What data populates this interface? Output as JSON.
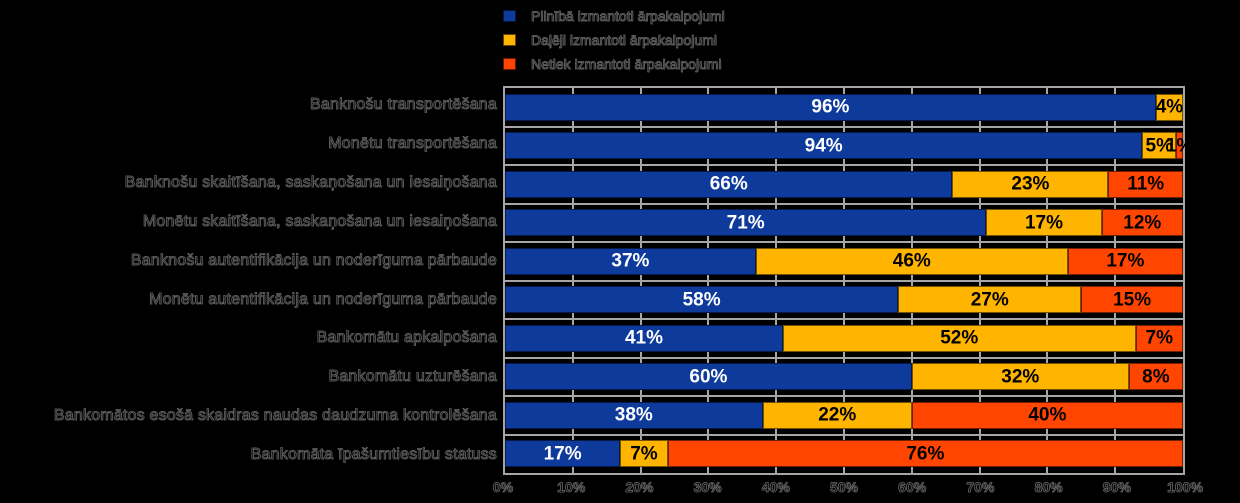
{
  "legend": {
    "items": [
      {
        "label": "Pilnībā izmantoti ārpakalpojumi",
        "color": "#0D3A9B"
      },
      {
        "label": "Daļēji izmantoti ārpakalpojumi",
        "color": "#FFB400"
      },
      {
        "label": "Netiek izmantoti ārpakalpojumi",
        "color": "#FF4500"
      }
    ]
  },
  "chart_data": {
    "type": "bar",
    "orientation": "horizontal",
    "stacked": true,
    "unit": "%",
    "title": "",
    "xlabel": "",
    "ylabel": "",
    "grid": true,
    "legend_position": "top",
    "xlim": [
      0,
      100
    ],
    "x_ticks": [
      "0%",
      "10%",
      "20%",
      "30%",
      "40%",
      "50%",
      "60%",
      "70%",
      "80%",
      "90%",
      "100%"
    ],
    "categories": [
      "Banknošu transportēšana",
      "Monētu transportēšana",
      "Banknošu skaitīšana, saskaņošana un iesaiņošana",
      "Monētu skaitīšana, saskaņošana un iesaiņošana",
      "Banknošu autentifikācija un noderīguma pārbaude",
      "Monētu autentifikācija un noderīguma pārbaude",
      "Bankomātu apkalpošana",
      "Bankomātu uzturēšana",
      "Bankomātos esošā skaidras naudas daudzuma kontrolēšana",
      "Bankomāta īpašumtiesību statuss"
    ],
    "series": [
      {
        "name": "Pilnībā izmantoti ārpakalpojumi",
        "color": "#0D3A9B",
        "label_color": "#FFFFFF",
        "values": [
          96,
          94,
          66,
          71,
          37,
          58,
          41,
          60,
          38,
          17
        ]
      },
      {
        "name": "Daļēji izmantoti ārpakalpojumi",
        "color": "#FFB400",
        "label_color": "#000000",
        "values": [
          4,
          5,
          23,
          17,
          46,
          27,
          52,
          32,
          22,
          7
        ]
      },
      {
        "name": "Netiek izmantoti ārpakalpojumi",
        "color": "#FF4500",
        "label_color": "#000000",
        "values": [
          0,
          1,
          11,
          12,
          17,
          15,
          7,
          8,
          40,
          76
        ]
      }
    ]
  },
  "style": {
    "background": "#000000",
    "grid_color": "#A6A6A6",
    "plot_border_color": "#A6A6A6"
  }
}
